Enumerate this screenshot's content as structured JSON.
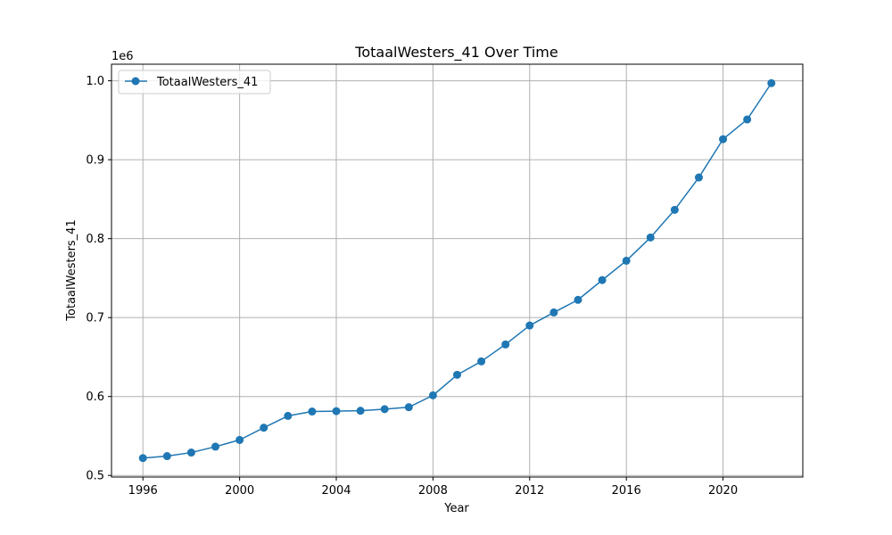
{
  "chart_data": {
    "type": "line",
    "title": "TotaalWesters_41 Over Time",
    "xlabel": "Year",
    "ylabel": "TotaalWesters_41",
    "y_offset_label": "1e6",
    "xlim": [
      1994.7,
      2023.3
    ],
    "ylim": [
      498000,
      1021000
    ],
    "x_ticks": [
      1996,
      2000,
      2004,
      2008,
      2012,
      2016,
      2020
    ],
    "x_tick_labels": [
      "1996",
      "2000",
      "2004",
      "2008",
      "2012",
      "2016",
      "2020"
    ],
    "y_ticks": [
      500000,
      600000,
      700000,
      800000,
      900000,
      1000000
    ],
    "y_tick_labels": [
      "0.5",
      "0.6",
      "0.7",
      "0.8",
      "0.9",
      "1.0"
    ],
    "grid": true,
    "legend_position": "top-left",
    "colors": {
      "series": "#1f77b4",
      "grid": "#b0b0b0",
      "axes": "#000000"
    },
    "x": [
      1996,
      1997,
      1998,
      1999,
      2000,
      2001,
      2002,
      2003,
      2004,
      2005,
      2006,
      2007,
      2008,
      2009,
      2010,
      2011,
      2012,
      2013,
      2014,
      2015,
      2016,
      2017,
      2018,
      2019,
      2020,
      2021,
      2022
    ],
    "series": [
      {
        "name": "TotaalWesters_41",
        "marker": "circle",
        "values": [
          522000,
          524500,
          529000,
          536500,
          545000,
          560500,
          575500,
          581000,
          581500,
          582000,
          584000,
          586500,
          601500,
          627500,
          644500,
          666000,
          690000,
          706500,
          722500,
          747500,
          772000,
          801500,
          836500,
          877500,
          926000,
          951000,
          997000
        ]
      }
    ]
  }
}
